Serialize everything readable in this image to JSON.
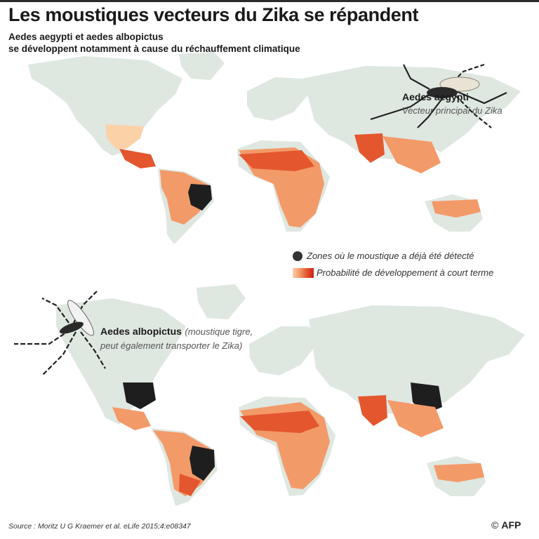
{
  "header": {
    "title": "Les moustiques vecteurs du Zika se répandent",
    "subtitle_line1": "Aedes aegypti et aedes albopictus",
    "subtitle_line2": "se développent notamment à cause du réchauffement climatique"
  },
  "species1": {
    "name": "Aedes aegypti",
    "note": "Vecteur principal du Zika"
  },
  "species2": {
    "name": "Aedes albopictus",
    "note_line1": "(moustique tigre,",
    "note_line2": "peut également transporter le Zika)"
  },
  "legend": {
    "detected": "Zones où le moustique a déjà été détecté",
    "probability": "Probabilité de développement à court terme"
  },
  "footer": {
    "source": "Source : Moritz U G Kraemer et al. eLife 2015;4:e08347",
    "credit_symbol": "©",
    "credit": "AFP"
  },
  "colors": {
    "land": "#dfe7e1",
    "prob_low": "#fbd2a8",
    "prob_mid": "#f39a69",
    "prob_high": "#e4572e",
    "prob_max": "#c8201c",
    "detected": "#1e1e1e"
  }
}
